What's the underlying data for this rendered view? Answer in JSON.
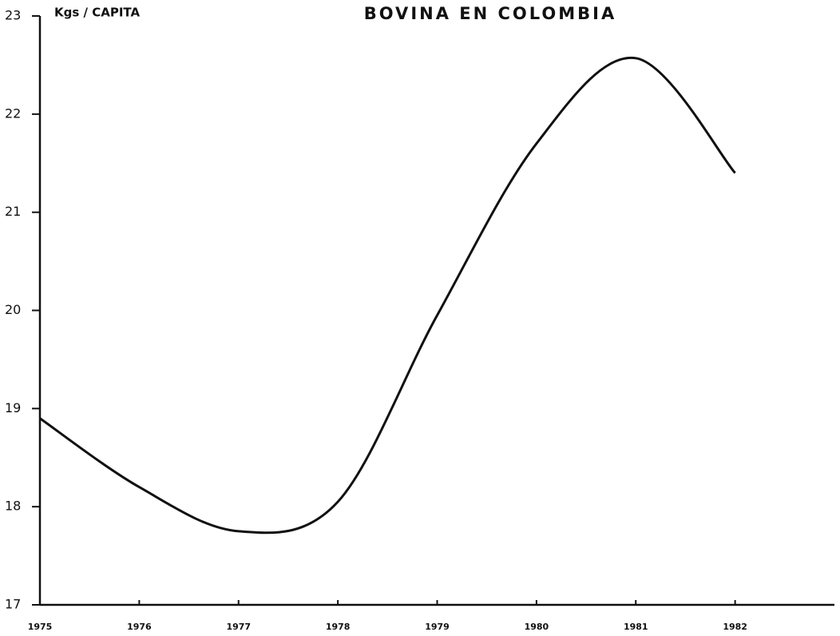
{
  "chart_data": {
    "type": "line",
    "title": "BOVINA EN COLOMBIA",
    "y_label": "Kgs / CAPITA",
    "x": [
      1975,
      1976,
      1977,
      1978,
      1979,
      1980,
      1981,
      1982
    ],
    "series": [
      {
        "color": "#111111",
        "values": [
          18.9,
          18.2,
          17.75,
          18.05,
          19.95,
          21.7,
          22.57,
          21.4
        ]
      }
    ],
    "xlim": [
      1975,
      1983
    ],
    "xticks": [
      1975,
      1976,
      1977,
      1978,
      1979,
      1980,
      1981,
      1982
    ],
    "ylim": [
      17,
      23
    ],
    "yticks": [
      17,
      18,
      19,
      20,
      21,
      22,
      23
    ],
    "grid": false
  }
}
